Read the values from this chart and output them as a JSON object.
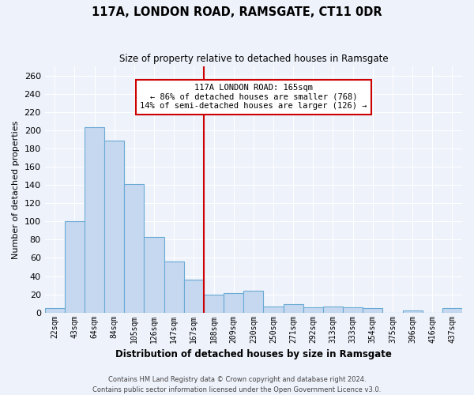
{
  "title": "117A, LONDON ROAD, RAMSGATE, CT11 0DR",
  "subtitle": "Size of property relative to detached houses in Ramsgate",
  "xlabel": "Distribution of detached houses by size in Ramsgate",
  "ylabel": "Number of detached properties",
  "categories": [
    "22sqm",
    "43sqm",
    "64sqm",
    "84sqm",
    "105sqm",
    "126sqm",
    "147sqm",
    "167sqm",
    "188sqm",
    "209sqm",
    "230sqm",
    "250sqm",
    "271sqm",
    "292sqm",
    "313sqm",
    "333sqm",
    "354sqm",
    "375sqm",
    "396sqm",
    "416sqm",
    "437sqm"
  ],
  "values": [
    5,
    100,
    204,
    189,
    141,
    83,
    56,
    36,
    20,
    21,
    24,
    7,
    9,
    6,
    7,
    6,
    5,
    0,
    2,
    0,
    5
  ],
  "bar_color": "#c5d8f0",
  "bar_edge_color": "#6aaad4",
  "background_color": "#eef2fb",
  "grid_color": "#ffffff",
  "annotation_text_line1": "117A LONDON ROAD: 165sqm",
  "annotation_text_line2": "← 86% of detached houses are smaller (768)",
  "annotation_text_line3": "14% of semi-detached houses are larger (126) →",
  "annotation_box_facecolor": "#ffffff",
  "annotation_box_edgecolor": "#cc0000",
  "vline_color": "#cc0000",
  "vline_x": 7.5,
  "ylim": [
    0,
    270
  ],
  "yticks": [
    0,
    20,
    40,
    60,
    80,
    100,
    120,
    140,
    160,
    180,
    200,
    220,
    240,
    260
  ],
  "footnote1": "Contains HM Land Registry data © Crown copyright and database right 2024.",
  "footnote2": "Contains public sector information licensed under the Open Government Licence v3.0."
}
